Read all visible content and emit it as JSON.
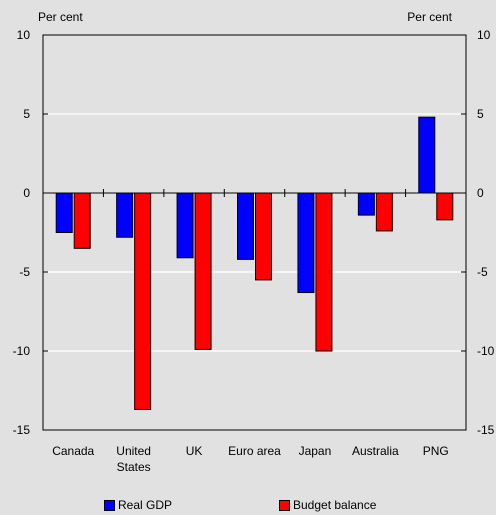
{
  "chart_data": {
    "type": "bar",
    "title": "",
    "y_unit_left": "Per cent",
    "y_unit_right": "Per cent",
    "ylim": [
      -15,
      10
    ],
    "yticks": [
      10,
      5,
      0,
      -5,
      -10,
      -15
    ],
    "grid": true,
    "legend_position": "bottom",
    "categories": [
      {
        "lines": [
          "Canada"
        ]
      },
      {
        "lines": [
          "United",
          "States"
        ]
      },
      {
        "lines": [
          "UK"
        ]
      },
      {
        "lines": [
          "Euro area"
        ]
      },
      {
        "lines": [
          "Japan"
        ]
      },
      {
        "lines": [
          "Australia"
        ]
      },
      {
        "lines": [
          "PNG"
        ]
      }
    ],
    "series": [
      {
        "name": "Real GDP",
        "color": "#0000ff",
        "values": [
          -2.5,
          -2.8,
          -4.1,
          -4.2,
          -6.3,
          -1.4,
          4.8
        ]
      },
      {
        "name": "Budget balance",
        "color": "#ff0000",
        "values": [
          -3.5,
          -13.7,
          -9.9,
          -5.5,
          -10.0,
          -2.4,
          -1.7
        ]
      }
    ]
  },
  "style": {
    "background": "#e1e1e1",
    "plot_background": "#e1e1e1",
    "grid_color": "#ffffff"
  }
}
